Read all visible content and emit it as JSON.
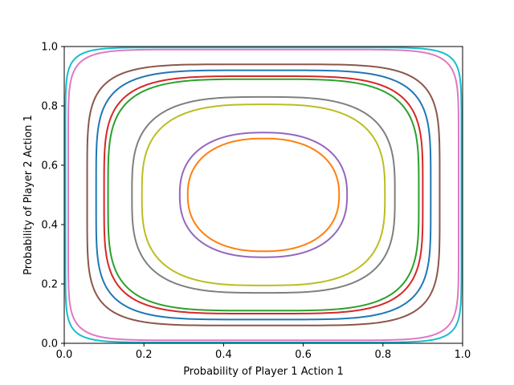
{
  "chart_data": {
    "type": "line",
    "title": "",
    "xlabel": "Probability of Player 1 Action 1",
    "ylabel": "Probability of Player 2 Action 1",
    "xlim": [
      0,
      1
    ],
    "ylim": [
      0,
      1
    ],
    "xticks": [
      "0.0",
      "0.2",
      "0.4",
      "0.6",
      "0.8",
      "1.0"
    ],
    "yticks": [
      "0.0",
      "0.2",
      "0.4",
      "0.6",
      "0.8",
      "1.0"
    ],
    "grid": false,
    "legend": "none",
    "center": [
      0.5,
      0.5
    ],
    "series": [
      {
        "color": "#ff7f0e",
        "x_range": [
          0.31,
          0.69
        ],
        "y_range": [
          0.31,
          0.69
        ],
        "shape": 2.3
      },
      {
        "color": "#9467bd",
        "x_range": [
          0.29,
          0.71
        ],
        "y_range": [
          0.29,
          0.71
        ],
        "shape": 2.4
      },
      {
        "color": "#bcbd22",
        "x_range": [
          0.195,
          0.805
        ],
        "y_range": [
          0.195,
          0.805
        ],
        "shape": 3.0
      },
      {
        "color": "#7f7f7f",
        "x_range": [
          0.17,
          0.83
        ],
        "y_range": [
          0.17,
          0.83
        ],
        "shape": 3.2
      },
      {
        "color": "#2ca02c",
        "x_range": [
          0.11,
          0.89
        ],
        "y_range": [
          0.11,
          0.89
        ],
        "shape": 4.0
      },
      {
        "color": "#d62728",
        "x_range": [
          0.1,
          0.9
        ],
        "y_range": [
          0.1,
          0.9
        ],
        "shape": 4.2
      },
      {
        "color": "#1f77b4",
        "x_range": [
          0.08,
          0.92
        ],
        "y_range": [
          0.08,
          0.92
        ],
        "shape": 4.6
      },
      {
        "color": "#8c564b",
        "x_range": [
          0.055,
          0.94
        ],
        "y_range": [
          0.06,
          0.94
        ],
        "shape": 5.2
      },
      {
        "color": "#e377c2",
        "x_range": [
          0.01,
          0.99
        ],
        "y_range": [
          0.01,
          0.99
        ],
        "shape": 9.0
      },
      {
        "color": "#17becf",
        "x_range": [
          0.003,
          0.997
        ],
        "y_range": [
          0.003,
          0.997
        ],
        "shape": 11.0
      }
    ]
  }
}
